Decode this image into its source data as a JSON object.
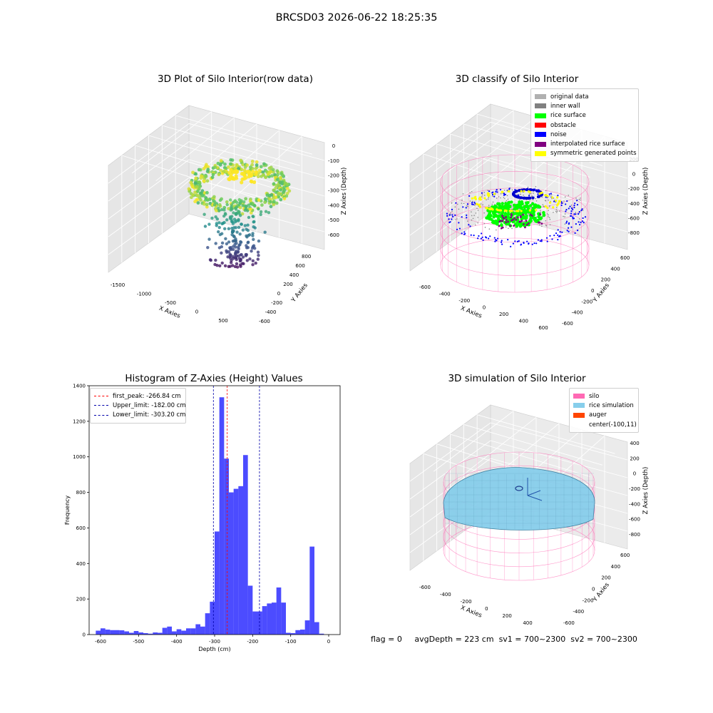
{
  "suptitle": "BRCSD03 2026-06-22 18:25:35",
  "colors": {
    "pink": "#ff69b4",
    "hist_bar": "#0000ff",
    "peak_line": "#ff0000",
    "limit_line": "#0000aa"
  },
  "panel1": {
    "title": "3D Plot of Silo Interior(row data)",
    "xlabel": "X Axies",
    "ylabel": "Y Axies",
    "zlabel": "Z Axies (Depth)",
    "xticks": [
      "-1500",
      "-1000",
      "-500",
      "0",
      "500"
    ],
    "yticks": [
      "800",
      "600",
      "400",
      "200",
      "0",
      "-200",
      "-400",
      "-600"
    ],
    "zticks": [
      "0",
      "-100",
      "-200",
      "-300",
      "-400",
      "-500",
      "-600"
    ]
  },
  "panel2": {
    "title": "3D classify of Silo Interior",
    "xlabel": "X Axies",
    "ylabel": "Y Axies",
    "zlabel": "Z Axies (Depth)",
    "xticks": [
      "-600",
      "-400",
      "-200",
      "0",
      "200",
      "400",
      "600"
    ],
    "yticks": [
      "600",
      "400",
      "200",
      "0",
      "-200",
      "-400",
      "-600"
    ],
    "zticks": [
      "200",
      "0",
      "-200",
      "-400",
      "-600",
      "-800"
    ],
    "legend": [
      {
        "label": "original data",
        "color": "#b0b0b0"
      },
      {
        "label": "inner wall",
        "color": "#808080"
      },
      {
        "label": "rice surface",
        "color": "#00ff00"
      },
      {
        "label": "obstacle",
        "color": "#ff0000"
      },
      {
        "label": "noise",
        "color": "#0000ff"
      },
      {
        "label": "interpolated rice surface",
        "color": "#800080"
      },
      {
        "label": "symmetric generated points",
        "color": "#ffff00"
      }
    ]
  },
  "panel4": {
    "title": "3D simulation of Silo Interior",
    "xlabel": "X Axies",
    "ylabel": "Y Axies",
    "zlabel": "Z Axies (Depth)",
    "xticks": [
      "-600",
      "-400",
      "-200",
      "0",
      "200",
      "400"
    ],
    "yticks": [
      "600",
      "400",
      "200",
      "0",
      "-200",
      "-400",
      "-600"
    ],
    "zticks": [
      "400",
      "200",
      "0",
      "-200",
      "-400",
      "-600",
      "-800"
    ],
    "legend": [
      {
        "label": "silo",
        "color": "#ff69b4"
      },
      {
        "label": "rice simulation",
        "color": "#87ceeb"
      },
      {
        "label": "auger",
        "color": "#ff4500"
      },
      {
        "label": "center(-100,11)",
        "color": ""
      }
    ]
  },
  "chart_data": {
    "type": "bar",
    "title": "Histogram of Z-Axies (Height) Values",
    "xlabel": "Depth (cm)",
    "ylabel": "Frequency",
    "xlim": [
      -630,
      30
    ],
    "ylim": [
      0,
      1400
    ],
    "xticks": [
      -600,
      -500,
      -400,
      -300,
      -200,
      -100,
      0
    ],
    "yticks": [
      0,
      200,
      400,
      600,
      800,
      1000,
      1200,
      1400
    ],
    "bin_width": 12.5,
    "bin_start": -612.5,
    "values": [
      22,
      35,
      28,
      25,
      25,
      24,
      18,
      10,
      20,
      12,
      8,
      5,
      12,
      10,
      38,
      45,
      18,
      30,
      22,
      35,
      35,
      58,
      45,
      120,
      185,
      580,
      1335,
      990,
      800,
      820,
      835,
      1010,
      275,
      130,
      130,
      160,
      175,
      180,
      265,
      180,
      10,
      8,
      25,
      28,
      80,
      495,
      70,
      5
    ],
    "lines": [
      {
        "label": "first_peak: -266.84 cm",
        "x": -266.84,
        "color": "#ff0000"
      },
      {
        "label": "Upper_limit: -182.00 cm",
        "x": -182.0,
        "color": "#0000aa"
      },
      {
        "label": "Lower_limit: -303.20 cm",
        "x": -303.2,
        "color": "#0000aa"
      }
    ]
  },
  "footer": {
    "flag": "flag = 0",
    "avg_depth": "avgDepth = 223 cm",
    "sv1": "sv1 = 700~2300",
    "sv2": "sv2 = 700~2300"
  }
}
